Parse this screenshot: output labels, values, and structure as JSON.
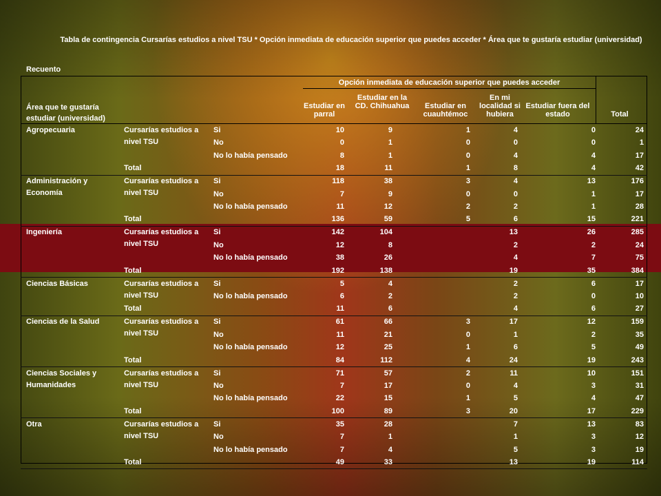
{
  "title": "Tabla de contingencia Cursarías estudios a nivel TSU * Opción inmediata de educación superior que puedes acceder * Área que te gustaría estudiar (universidad)",
  "recuento_label": "Recuento",
  "header": {
    "row_label": "Área que te gustaría estudiar (universidad)",
    "group": "Opción inmediata de educación superior que puedes acceder",
    "columns": [
      "Estudiar en parral",
      "Estudiar en la CD. Chihuahua",
      "Estudiar en cuauhtémoc",
      "En mi localidad si hubiera",
      "Estudiar fuera del estado",
      "Total"
    ]
  },
  "subgroup_label": "Cursarías estudios a nivel TSU",
  "total_label": "Total",
  "groups": [
    {
      "area": "Agropecuaria",
      "rows": [
        {
          "resp": "Si",
          "values": [
            "10",
            "9",
            "1",
            "4",
            "0",
            "24"
          ]
        },
        {
          "resp": "No",
          "values": [
            "0",
            "1",
            "0",
            "0",
            "0",
            "1"
          ]
        },
        {
          "resp": "No lo había pensado",
          "values": [
            "8",
            "1",
            "0",
            "4",
            "4",
            "17"
          ]
        }
      ],
      "total": [
        "18",
        "11",
        "1",
        "8",
        "4",
        "42"
      ]
    },
    {
      "area": "Administración y Economía",
      "rows": [
        {
          "resp": "Si",
          "values": [
            "118",
            "38",
            "3",
            "4",
            "13",
            "176"
          ]
        },
        {
          "resp": "No",
          "values": [
            "7",
            "9",
            "0",
            "0",
            "1",
            "17"
          ]
        },
        {
          "resp": "No lo había pensado",
          "values": [
            "11",
            "12",
            "2",
            "2",
            "1",
            "28"
          ]
        }
      ],
      "total": [
        "136",
        "59",
        "5",
        "6",
        "15",
        "221"
      ]
    },
    {
      "area": "Ingeniería",
      "rows": [
        {
          "resp": "Si",
          "values": [
            "142",
            "104",
            "",
            "13",
            "26",
            "285"
          ]
        },
        {
          "resp": "No",
          "values": [
            "12",
            "8",
            "",
            "2",
            "2",
            "24"
          ]
        },
        {
          "resp": "No lo había pensado",
          "values": [
            "38",
            "26",
            "",
            "4",
            "7",
            "75"
          ]
        }
      ],
      "total": [
        "192",
        "138",
        "",
        "19",
        "35",
        "384"
      ]
    },
    {
      "area": "Ciencias Básicas",
      "rows": [
        {
          "resp": "Si",
          "values": [
            "5",
            "4",
            "",
            "2",
            "6",
            "17"
          ]
        },
        {
          "resp": "No lo había pensado",
          "values": [
            "6",
            "2",
            "",
            "2",
            "0",
            "10"
          ]
        }
      ],
      "total": [
        "11",
        "6",
        "",
        "4",
        "6",
        "27"
      ]
    },
    {
      "area": "Ciencias de la Salud",
      "rows": [
        {
          "resp": "Si",
          "values": [
            "61",
            "66",
            "3",
            "17",
            "12",
            "159"
          ]
        },
        {
          "resp": "No",
          "values": [
            "11",
            "21",
            "0",
            "1",
            "2",
            "35"
          ]
        },
        {
          "resp": "No lo había pensado",
          "values": [
            "12",
            "25",
            "1",
            "6",
            "5",
            "49"
          ]
        }
      ],
      "total": [
        "84",
        "112",
        "4",
        "24",
        "19",
        "243"
      ]
    },
    {
      "area": "Ciencias Sociales y Humanidades",
      "rows": [
        {
          "resp": "Si",
          "values": [
            "71",
            "57",
            "2",
            "11",
            "10",
            "151"
          ]
        },
        {
          "resp": "No",
          "values": [
            "7",
            "17",
            "0",
            "4",
            "3",
            "31"
          ]
        },
        {
          "resp": "No lo había pensado",
          "values": [
            "22",
            "15",
            "1",
            "5",
            "4",
            "47"
          ]
        }
      ],
      "total": [
        "100",
        "89",
        "3",
        "20",
        "17",
        "229"
      ]
    },
    {
      "area": "Otra",
      "rows": [
        {
          "resp": "Si",
          "values": [
            "35",
            "28",
            "",
            "7",
            "13",
            "83"
          ]
        },
        {
          "resp": "No",
          "values": [
            "7",
            "1",
            "",
            "1",
            "3",
            "12"
          ]
        },
        {
          "resp": "No lo había pensado",
          "values": [
            "7",
            "4",
            "",
            "5",
            "3",
            "19"
          ]
        }
      ],
      "total": [
        "49",
        "33",
        "",
        "13",
        "19",
        "114"
      ]
    }
  ]
}
